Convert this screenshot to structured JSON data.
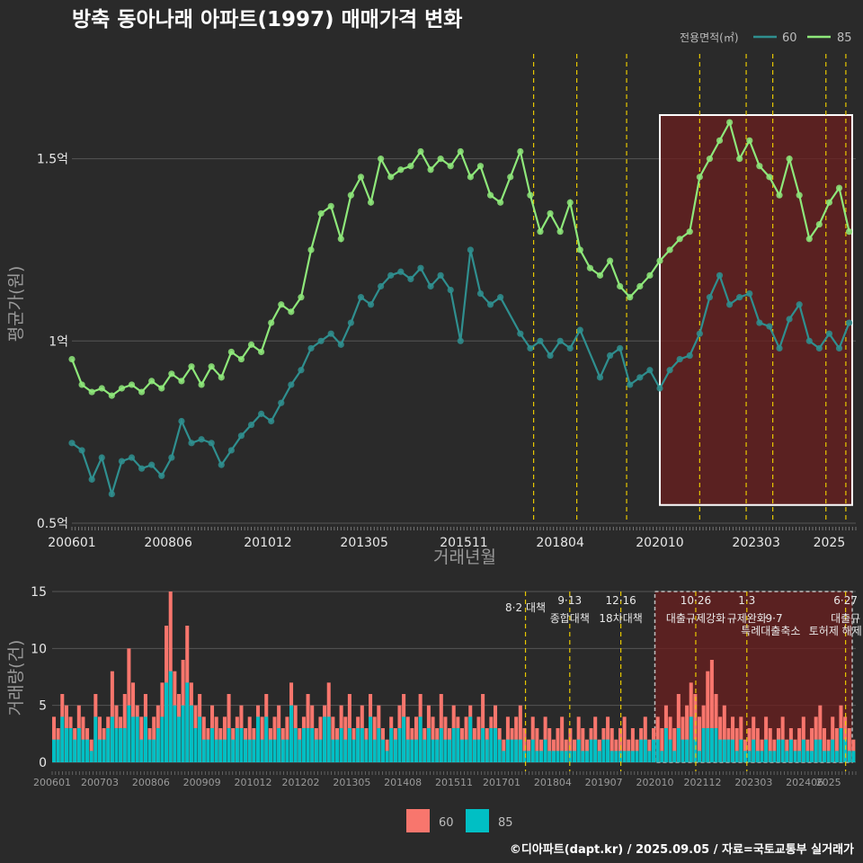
{
  "title": "방축 동아나래 아파트(1997) 매매가격 변화",
  "caption": "©디아파트(dapt.kr) / 2025.09.05 / 자료=국토교통부 실거래가",
  "colors": {
    "background": "#2a2a2a",
    "line60": "#2f8f8f",
    "line85": "#8ee87a",
    "bar60": "#f8766d",
    "bar85": "#00bfc4",
    "eventLine": "#e8c800",
    "highlight": "#6b1f1f"
  },
  "chart_data": [
    {
      "type": "line",
      "name": "price",
      "xlabel": "거래년월",
      "ylabel": "평균가(원)",
      "x_range": [
        "2006-01",
        "2025-09"
      ],
      "ylim": [
        0.5,
        1.8
      ],
      "y_ticks": [
        {
          "value": 0.5,
          "label": "0.5억"
        },
        {
          "value": 1.0,
          "label": "1억"
        },
        {
          "value": 1.5,
          "label": "1.5억"
        }
      ],
      "x_ticks": [
        "200601",
        "200806",
        "201012",
        "201305",
        "201511",
        "201804",
        "202010",
        "202303",
        "2025"
      ],
      "legend": {
        "title": "전용면적(㎡)",
        "position": "top-right",
        "items": [
          "60",
          "85"
        ]
      },
      "highlight": {
        "from": "2020-10",
        "to": "2025-09"
      },
      "event_lines": [
        "2017-08",
        "2018-09",
        "2019-12",
        "2021-10",
        "2022-12",
        "2023-08",
        "2024-12",
        "2025-06"
      ],
      "series": [
        {
          "name": "60",
          "points": [
            [
              "2006-01",
              0.72
            ],
            [
              "2006-04",
              0.7
            ],
            [
              "2006-07",
              0.62
            ],
            [
              "2006-10",
              0.68
            ],
            [
              "2007-01",
              0.58
            ],
            [
              "2007-04",
              0.67
            ],
            [
              "2007-07",
              0.68
            ],
            [
              "2007-10",
              0.65
            ],
            [
              "2008-01",
              0.66
            ],
            [
              "2008-04",
              0.63
            ],
            [
              "2008-07",
              0.68
            ],
            [
              "2008-10",
              0.78
            ],
            [
              "2009-01",
              0.72
            ],
            [
              "2009-04",
              0.73
            ],
            [
              "2009-07",
              0.72
            ],
            [
              "2009-10",
              0.66
            ],
            [
              "2010-01",
              0.7
            ],
            [
              "2010-04",
              0.74
            ],
            [
              "2010-07",
              0.77
            ],
            [
              "2010-10",
              0.8
            ],
            [
              "2011-01",
              0.78
            ],
            [
              "2011-04",
              0.83
            ],
            [
              "2011-07",
              0.88
            ],
            [
              "2011-10",
              0.92
            ],
            [
              "2012-01",
              0.98
            ],
            [
              "2012-04",
              1.0
            ],
            [
              "2012-07",
              1.02
            ],
            [
              "2012-10",
              0.99
            ],
            [
              "2013-01",
              1.05
            ],
            [
              "2013-04",
              1.12
            ],
            [
              "2013-07",
              1.1
            ],
            [
              "2013-10",
              1.15
            ],
            [
              "2014-01",
              1.18
            ],
            [
              "2014-04",
              1.19
            ],
            [
              "2014-07",
              1.17
            ],
            [
              "2014-10",
              1.2
            ],
            [
              "2015-01",
              1.15
            ],
            [
              "2015-04",
              1.18
            ],
            [
              "2015-07",
              1.14
            ],
            [
              "2015-10",
              1.0
            ],
            [
              "2016-01",
              1.25
            ],
            [
              "2016-04",
              1.13
            ],
            [
              "2016-07",
              1.1
            ],
            [
              "2016-10",
              1.12
            ],
            [
              "2017-04",
              1.02
            ],
            [
              "2017-07",
              0.98
            ],
            [
              "2017-10",
              1.0
            ],
            [
              "2018-01",
              0.96
            ],
            [
              "2018-04",
              1.0
            ],
            [
              "2018-07",
              0.98
            ],
            [
              "2018-10",
              1.03
            ],
            [
              "2019-04",
              0.9
            ],
            [
              "2019-07",
              0.96
            ],
            [
              "2019-10",
              0.98
            ],
            [
              "2020-01",
              0.88
            ],
            [
              "2020-04",
              0.9
            ],
            [
              "2020-07",
              0.92
            ],
            [
              "2020-10",
              0.87
            ],
            [
              "2021-01",
              0.92
            ],
            [
              "2021-04",
              0.95
            ],
            [
              "2021-07",
              0.96
            ],
            [
              "2021-10",
              1.02
            ],
            [
              "2022-01",
              1.12
            ],
            [
              "2022-04",
              1.18
            ],
            [
              "2022-07",
              1.1
            ],
            [
              "2022-10",
              1.12
            ],
            [
              "2023-01",
              1.13
            ],
            [
              "2023-04",
              1.05
            ],
            [
              "2023-07",
              1.04
            ],
            [
              "2023-10",
              0.98
            ],
            [
              "2024-01",
              1.06
            ],
            [
              "2024-04",
              1.1
            ],
            [
              "2024-07",
              1.0
            ],
            [
              "2024-10",
              0.98
            ],
            [
              "2025-01",
              1.02
            ],
            [
              "2025-04",
              0.98
            ],
            [
              "2025-07",
              1.05
            ]
          ]
        },
        {
          "name": "85",
          "points": [
            [
              "2006-01",
              0.95
            ],
            [
              "2006-04",
              0.88
            ],
            [
              "2006-07",
              0.86
            ],
            [
              "2006-10",
              0.87
            ],
            [
              "2007-01",
              0.85
            ],
            [
              "2007-04",
              0.87
            ],
            [
              "2007-07",
              0.88
            ],
            [
              "2007-10",
              0.86
            ],
            [
              "2008-01",
              0.89
            ],
            [
              "2008-04",
              0.87
            ],
            [
              "2008-07",
              0.91
            ],
            [
              "2008-10",
              0.89
            ],
            [
              "2009-01",
              0.93
            ],
            [
              "2009-04",
              0.88
            ],
            [
              "2009-07",
              0.93
            ],
            [
              "2009-10",
              0.9
            ],
            [
              "2010-01",
              0.97
            ],
            [
              "2010-04",
              0.95
            ],
            [
              "2010-07",
              0.99
            ],
            [
              "2010-10",
              0.97
            ],
            [
              "2011-01",
              1.05
            ],
            [
              "2011-04",
              1.1
            ],
            [
              "2011-07",
              1.08
            ],
            [
              "2011-10",
              1.12
            ],
            [
              "2012-01",
              1.25
            ],
            [
              "2012-04",
              1.35
            ],
            [
              "2012-07",
              1.37
            ],
            [
              "2012-10",
              1.28
            ],
            [
              "2013-01",
              1.4
            ],
            [
              "2013-04",
              1.45
            ],
            [
              "2013-07",
              1.38
            ],
            [
              "2013-10",
              1.5
            ],
            [
              "2014-01",
              1.45
            ],
            [
              "2014-04",
              1.47
            ],
            [
              "2014-07",
              1.48
            ],
            [
              "2014-10",
              1.52
            ],
            [
              "2015-01",
              1.47
            ],
            [
              "2015-04",
              1.5
            ],
            [
              "2015-07",
              1.48
            ],
            [
              "2015-10",
              1.52
            ],
            [
              "2016-01",
              1.45
            ],
            [
              "2016-04",
              1.48
            ],
            [
              "2016-07",
              1.4
            ],
            [
              "2016-10",
              1.38
            ],
            [
              "2017-01",
              1.45
            ],
            [
              "2017-04",
              1.52
            ],
            [
              "2017-07",
              1.4
            ],
            [
              "2017-10",
              1.3
            ],
            [
              "2018-01",
              1.35
            ],
            [
              "2018-04",
              1.3
            ],
            [
              "2018-07",
              1.38
            ],
            [
              "2018-10",
              1.25
            ],
            [
              "2019-01",
              1.2
            ],
            [
              "2019-04",
              1.18
            ],
            [
              "2019-07",
              1.22
            ],
            [
              "2019-10",
              1.15
            ],
            [
              "2020-01",
              1.12
            ],
            [
              "2020-04",
              1.15
            ],
            [
              "2020-07",
              1.18
            ],
            [
              "2020-10",
              1.22
            ],
            [
              "2021-01",
              1.25
            ],
            [
              "2021-04",
              1.28
            ],
            [
              "2021-07",
              1.3
            ],
            [
              "2021-10",
              1.45
            ],
            [
              "2022-01",
              1.5
            ],
            [
              "2022-04",
              1.55
            ],
            [
              "2022-07",
              1.6
            ],
            [
              "2022-10",
              1.5
            ],
            [
              "2023-01",
              1.55
            ],
            [
              "2023-04",
              1.48
            ],
            [
              "2023-07",
              1.45
            ],
            [
              "2023-10",
              1.4
            ],
            [
              "2024-01",
              1.5
            ],
            [
              "2024-04",
              1.4
            ],
            [
              "2024-07",
              1.28
            ],
            [
              "2024-10",
              1.32
            ],
            [
              "2025-01",
              1.38
            ],
            [
              "2025-04",
              1.42
            ],
            [
              "2025-07",
              1.3
            ]
          ]
        }
      ]
    },
    {
      "type": "bar",
      "name": "volume",
      "ylabel": "거래량(건)",
      "ylim": [
        0,
        15
      ],
      "y_ticks": [
        0,
        5,
        10,
        15
      ],
      "x_ticks": [
        "200601",
        "200703",
        "200806",
        "200909",
        "201012",
        "201202",
        "201305",
        "201408",
        "201511",
        "201701",
        "201804",
        "201907",
        "202010",
        "202112",
        "202303",
        "202406",
        "2025"
      ],
      "legend": {
        "position": "bottom",
        "items": [
          "60",
          "85"
        ]
      },
      "highlight": {
        "from": "2020-10",
        "to": "2025-09"
      },
      "events": [
        {
          "date": "2017-08",
          "label": "8·2 대책",
          "sub": ""
        },
        {
          "date": "2018-09",
          "label": "9·13",
          "sub": "종합대책"
        },
        {
          "date": "2019-12",
          "label": "12·16",
          "sub": "18차대책"
        },
        {
          "date": "2021-10",
          "label": "10·26",
          "sub": "대출규제강화"
        },
        {
          "date": "2023-01",
          "label": "1·3",
          "sub": "규제완화"
        },
        {
          "date": "2023-09",
          "label": "",
          "sub": "9·7"
        },
        {
          "date": "2023-08",
          "label": "",
          "sub": "특례대출축소"
        },
        {
          "date": "2025-06",
          "label": "6·27",
          "sub": "대출규"
        },
        {
          "date": "2025-03",
          "label": "",
          "sub": "토허제 해제"
        }
      ],
      "total": [
        4,
        3,
        6,
        5,
        4,
        3,
        5,
        4,
        3,
        2,
        6,
        4,
        3,
        4,
        8,
        5,
        4,
        6,
        10,
        7,
        5,
        4,
        6,
        3,
        4,
        5,
        7,
        12,
        15,
        8,
        6,
        9,
        12,
        7,
        5,
        6,
        4,
        3,
        5,
        4,
        3,
        4,
        6,
        3,
        4,
        5,
        3,
        4,
        3,
        5,
        4,
        6,
        3,
        4,
        5,
        3,
        4,
        7,
        5,
        3,
        4,
        6,
        5,
        3,
        4,
        5,
        7,
        4,
        3,
        5,
        4,
        6,
        3,
        4,
        5,
        3,
        6,
        4,
        5,
        3,
        2,
        4,
        3,
        5,
        6,
        4,
        3,
        4,
        6,
        3,
        5,
        4,
        3,
        6,
        4,
        3,
        5,
        4,
        3,
        4,
        5,
        3,
        4,
        6,
        3,
        4,
        5,
        3,
        2,
        4,
        3,
        4,
        5,
        3,
        2,
        4,
        3,
        2,
        4,
        3,
        2,
        3,
        4,
        2,
        3,
        2,
        4,
        3,
        2,
        3,
        4,
        2,
        3,
        4,
        3,
        2,
        3,
        4,
        2,
        3,
        2,
        3,
        4,
        2,
        3,
        4,
        3,
        5,
        4,
        3,
        6,
        4,
        5,
        7,
        6,
        4,
        5,
        8,
        9,
        6,
        4,
        5,
        3,
        4,
        3,
        4,
        2,
        3,
        4,
        3,
        2,
        4,
        3,
        2,
        3,
        4,
        2,
        3,
        2,
        3,
        4,
        2,
        3,
        4,
        5,
        3,
        2,
        4,
        3,
        5,
        4,
        3,
        2
      ],
      "share85": [
        0.5,
        0.7,
        0.6,
        0.5,
        0.7,
        0.6,
        0.5,
        0.6,
        0.7,
        0.5,
        0.6,
        0.5,
        0.6,
        0.7,
        0.5,
        0.6,
        0.7,
        0.5,
        0.5,
        0.6,
        0.7,
        0.5,
        0.6,
        0.7,
        0.5,
        0.6,
        0.5,
        0.6,
        0.5,
        0.6,
        0.7,
        0.5,
        0.6,
        0.7,
        0.5,
        0.6,
        0.5,
        0.7,
        0.6,
        0.5,
        0.7,
        0.6,
        0.5,
        0.6,
        0.7,
        0.5,
        0.6,
        0.5,
        0.6,
        0.7,
        0.5,
        0.6,
        0.7,
        0.5,
        0.6,
        0.5,
        0.6,
        0.7,
        0.5,
        0.6,
        0.7,
        0.5,
        0.6,
        0.5,
        0.6,
        0.7,
        0.5,
        0.6,
        0.7,
        0.5,
        0.6,
        0.5,
        0.6,
        0.7,
        0.5,
        0.6,
        0.7,
        0.5,
        0.6,
        0.5,
        0.6,
        0.7,
        0.5,
        0.6,
        0.7,
        0.5,
        0.6,
        0.5,
        0.6,
        0.7,
        0.5,
        0.6,
        0.7,
        0.5,
        0.6,
        0.5,
        0.6,
        0.7,
        0.5,
        0.6,
        0.7,
        0.5,
        0.6,
        0.5,
        0.6,
        0.7,
        0.5,
        0.6,
        0.7,
        0.5,
        0.6,
        0.5,
        0.4,
        0.3,
        0.5,
        0.4,
        0.3,
        0.5,
        0.4,
        0.3,
        0.5,
        0.4,
        0.3,
        0.5,
        0.4,
        0.3,
        0.5,
        0.4,
        0.3,
        0.5,
        0.4,
        0.3,
        0.5,
        0.4,
        0.3,
        0.5,
        0.4,
        0.3,
        0.5,
        0.4,
        0.3,
        0.5,
        0.4,
        0.3,
        0.5,
        0.4,
        0.3,
        0.5,
        0.4,
        0.3,
        0.5,
        0.4,
        0.3,
        0.5,
        0.4,
        0.3,
        0.5,
        0.4,
        0.3,
        0.5,
        0.4,
        0.3,
        0.5,
        0.4,
        0.3,
        0.5,
        0.4,
        0.3,
        0.5,
        0.4,
        0.3,
        0.5,
        0.4,
        0.3,
        0.5,
        0.4,
        0.3,
        0.5,
        0.4,
        0.3,
        0.5,
        0.4,
        0.3,
        0.5,
        0.4,
        0.3,
        0.5,
        0.4,
        0.3,
        0.5,
        0.4,
        0.3,
        0.5,
        0.4,
        0.3,
        0.5
      ]
    }
  ]
}
